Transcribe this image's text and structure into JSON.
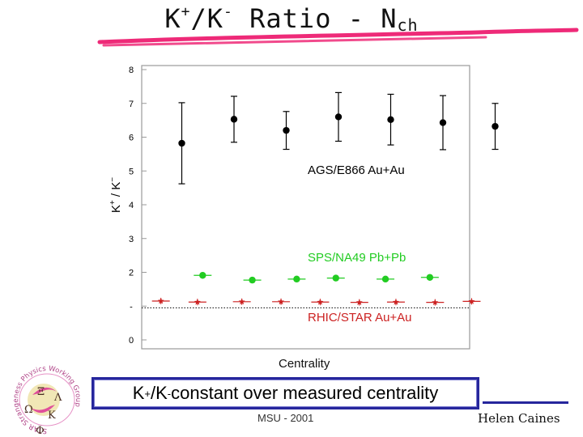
{
  "slide": {
    "title": {
      "main": "K",
      "sup1": "+",
      "slash": "/K",
      "sup2": "-",
      "rest": " Ratio - N",
      "sub": "ch"
    },
    "conclusion": {
      "a": "K",
      "sup1": "+",
      "b": "/K",
      "sup2": "-",
      "c": " constant over measured centrality"
    },
    "footer_center": "MSU - 2001",
    "footer_right": "Helen Caines",
    "logo": {
      "ring_text": "STAR Strangeness Physics Working Group",
      "letters": [
        "Ξ",
        "Λ",
        "Ω",
        "K",
        "Φ"
      ]
    },
    "colors": {
      "accent_swoosh": "#ee2a78",
      "box_border": "#26269c"
    }
  },
  "chart_data": {
    "type": "scatter",
    "xlabel": "Centrality",
    "ylabel": {
      "k": "K",
      "plus": "+",
      "sep": " / K",
      "minus": "−"
    },
    "ylim": [
      0,
      8
    ],
    "yticks": [
      "0",
      "-",
      "2",
      "3",
      "4",
      "5",
      "6",
      "7",
      "8"
    ],
    "grid": false,
    "reference_line": {
      "y": 0.95,
      "style": "dotted"
    },
    "series": [
      {
        "name": "AGS/E866 Au+Au",
        "color": "#000000",
        "marker": "circle",
        "x": [
          1,
          2,
          3,
          4,
          5,
          6,
          7
        ],
        "y": [
          5.82,
          6.53,
          6.2,
          6.6,
          6.52,
          6.43,
          6.32
        ],
        "err": [
          1.2,
          0.68,
          0.56,
          0.72,
          0.75,
          0.8,
          0.68
        ]
      },
      {
        "name": "SPS/NA49 Pb+Pb",
        "color": "#22cc22",
        "marker": "circle",
        "x": [
          1.4,
          2.35,
          3.2,
          3.95,
          4.9,
          5.75
        ],
        "y": [
          1.91,
          1.77,
          1.8,
          1.83,
          1.8,
          1.85
        ],
        "err": [
          0.08,
          0.06,
          0.06,
          0.06,
          0.06,
          0.06
        ]
      },
      {
        "name": "RHIC/STAR Au+Au",
        "color": "#cc2222",
        "marker": "star",
        "x": [
          0.6,
          1.3,
          2.15,
          2.9,
          3.65,
          4.4,
          5.1,
          5.85,
          6.55
        ],
        "y": [
          1.15,
          1.12,
          1.13,
          1.13,
          1.12,
          1.11,
          1.12,
          1.11,
          1.14
        ],
        "err": [
          0.03,
          0.03,
          0.03,
          0.03,
          0.03,
          0.03,
          0.03,
          0.03,
          0.03
        ]
      }
    ]
  }
}
